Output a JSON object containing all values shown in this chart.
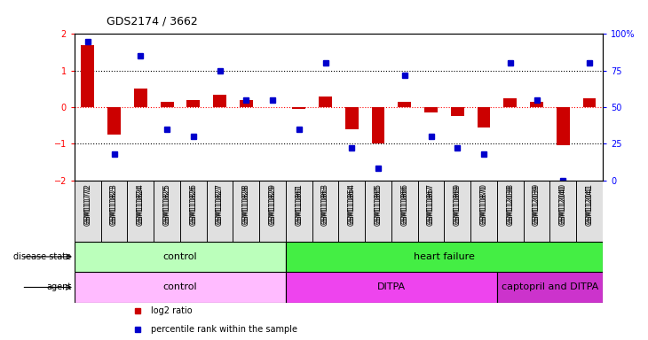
{
  "title": "GDS2174 / 3662",
  "samples": [
    "GSM111772",
    "GSM111823",
    "GSM111824",
    "GSM111825",
    "GSM111826",
    "GSM111827",
    "GSM111828",
    "GSM111829",
    "GSM111861",
    "GSM111863",
    "GSM111864",
    "GSM111865",
    "GSM111866",
    "GSM111867",
    "GSM111869",
    "GSM111870",
    "GSM112038",
    "GSM112039",
    "GSM112040",
    "GSM112041"
  ],
  "log2_ratio": [
    1.7,
    -0.75,
    0.5,
    0.15,
    0.2,
    0.35,
    0.2,
    0.0,
    -0.05,
    0.3,
    -0.6,
    -1.0,
    0.15,
    -0.15,
    -0.25,
    -0.55,
    0.25,
    0.15,
    -1.05,
    0.25
  ],
  "percentile_rank": [
    95,
    18,
    85,
    35,
    30,
    75,
    55,
    55,
    35,
    80,
    22,
    8,
    72,
    30,
    22,
    18,
    80,
    55,
    0,
    80
  ],
  "bar_color": "#cc0000",
  "dot_color": "#0000cc",
  "ylim_left": [
    -2,
    2
  ],
  "ylim_right": [
    0,
    100
  ],
  "yticks_left": [
    -2,
    -1,
    0,
    1,
    2
  ],
  "yticks_right": [
    0,
    25,
    50,
    75,
    100
  ],
  "disease_state_groups": [
    {
      "label": "control",
      "start": 0,
      "end": 7,
      "color": "#bbffbb"
    },
    {
      "label": "heart failure",
      "start": 8,
      "end": 19,
      "color": "#44ee44"
    }
  ],
  "agent_groups": [
    {
      "label": "control",
      "start": 0,
      "end": 7,
      "color": "#ffbbff"
    },
    {
      "label": "DITPA",
      "start": 8,
      "end": 15,
      "color": "#ee44ee"
    },
    {
      "label": "captopril and DITPA",
      "start": 16,
      "end": 19,
      "color": "#cc33cc"
    }
  ],
  "legend_items": [
    {
      "label": "log2 ratio",
      "color": "#cc0000"
    },
    {
      "label": "percentile rank within the sample",
      "color": "#0000cc"
    }
  ]
}
